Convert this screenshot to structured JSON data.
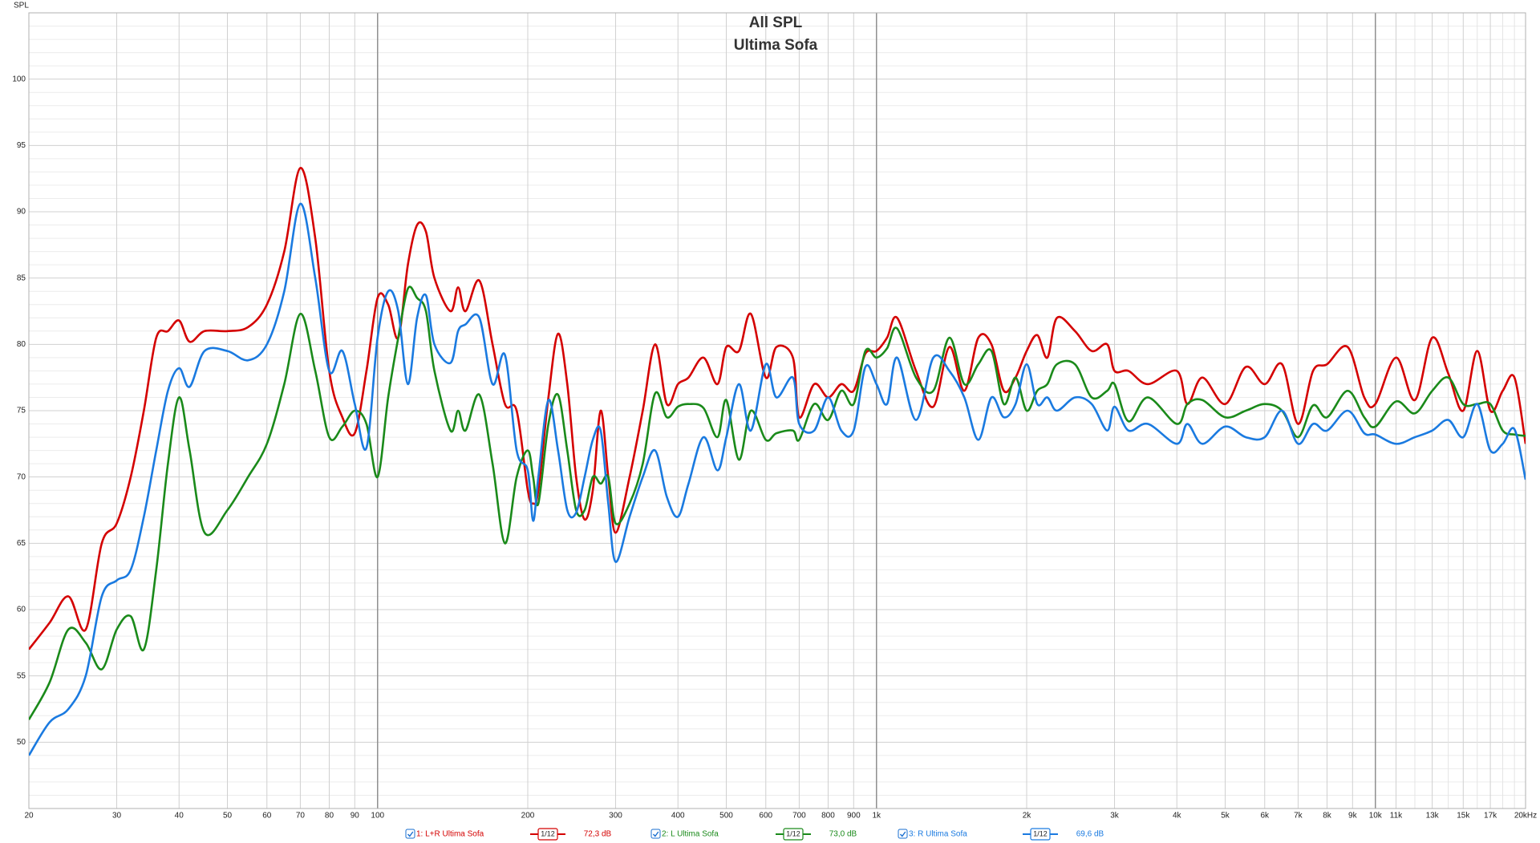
{
  "chart_data": {
    "type": "line",
    "title": "All SPL",
    "subtitle": "Ultima Sofa",
    "y_label": "SPL",
    "log_x": true,
    "grid": true,
    "xlim": [
      20,
      20000
    ],
    "ylim": [
      45,
      105
    ],
    "yticks": [
      50,
      55,
      60,
      65,
      70,
      75,
      80,
      85,
      90,
      95,
      100
    ],
    "yminorticks": [
      46,
      47,
      48,
      49,
      51,
      52,
      53,
      54,
      56,
      57,
      58,
      59,
      61,
      62,
      63,
      64,
      66,
      67,
      68,
      69,
      71,
      72,
      73,
      74,
      76,
      77,
      78,
      79,
      81,
      82,
      83,
      84,
      86,
      87,
      88,
      89,
      91,
      92,
      93,
      94,
      96,
      97,
      98,
      99,
      101,
      102,
      103,
      104
    ],
    "xticks": [
      20,
      30,
      40,
      50,
      60,
      70,
      80,
      90,
      100,
      200,
      300,
      400,
      500,
      600,
      700,
      800,
      900,
      {
        "value": 1000,
        "label": "1k"
      },
      {
        "value": 2000,
        "label": "2k"
      },
      {
        "value": 3000,
        "label": "3k"
      },
      {
        "value": 4000,
        "label": "4k"
      },
      {
        "value": 5000,
        "label": "5k"
      },
      {
        "value": 6000,
        "label": "6k"
      },
      {
        "value": 7000,
        "label": "7k"
      },
      {
        "value": 8000,
        "label": "8k"
      },
      {
        "value": 9000,
        "label": "9k"
      },
      {
        "value": 10000,
        "label": "10k"
      },
      {
        "value": 11000,
        "label": "11k"
      },
      {
        "value": 13000,
        "label": "13k"
      },
      {
        "value": 15000,
        "label": "15k"
      },
      {
        "value": 17000,
        "label": "17k"
      },
      {
        "value": 20000,
        "label": "20kHz"
      }
    ],
    "xminorticks": [
      12000,
      14000,
      16000,
      18000,
      19000
    ],
    "x": [
      20,
      22,
      24,
      26,
      28,
      30,
      32,
      34,
      36,
      38,
      40,
      42,
      45,
      50,
      55,
      60,
      65,
      70,
      75,
      80,
      85,
      90,
      95,
      100,
      105,
      110,
      115,
      120,
      125,
      130,
      140,
      145,
      150,
      160,
      170,
      180,
      190,
      200,
      205,
      210,
      220,
      230,
      240,
      250,
      260,
      270,
      280,
      290,
      300,
      320,
      340,
      360,
      380,
      400,
      420,
      450,
      480,
      500,
      530,
      560,
      600,
      630,
      680,
      700,
      750,
      800,
      850,
      900,
      950,
      1000,
      1050,
      1100,
      1200,
      1300,
      1400,
      1500,
      1600,
      1700,
      1800,
      1900,
      2000,
      2100,
      2200,
      2300,
      2500,
      2700,
      2900,
      3000,
      3200,
      3500,
      4000,
      4200,
      4500,
      5000,
      5500,
      6000,
      6500,
      7000,
      7500,
      8000,
      8800,
      9500,
      10000,
      11000,
      12000,
      13000,
      14000,
      15000,
      16000,
      17000,
      18000,
      19000,
      20000
    ],
    "series": [
      {
        "name": "1: L+R Ultima Sofa",
        "color": "#d40000",
        "smoothing": "1/12",
        "level": "72,3 dB",
        "values": [
          57,
          59,
          61,
          58.5,
          65,
          66.5,
          70,
          75,
          80.5,
          81,
          81.8,
          80.2,
          81,
          81,
          81.3,
          83,
          87,
          93.3,
          88,
          78,
          74.5,
          73.3,
          78,
          83.5,
          83,
          80.5,
          86,
          89,
          88.5,
          85,
          82.5,
          84.3,
          82.5,
          84.8,
          80,
          75.5,
          75,
          69,
          68,
          69,
          76,
          80.8,
          77,
          70,
          66.8,
          69,
          75,
          70,
          65.8,
          70,
          75,
          80,
          75.5,
          77,
          77.5,
          79,
          77,
          79.8,
          79.5,
          82.3,
          77.5,
          79.8,
          79,
          74.5,
          77,
          76,
          77,
          76.5,
          79.3,
          79.5,
          80.5,
          82,
          78,
          75.3,
          79.8,
          76.5,
          80.5,
          80,
          76.5,
          77.5,
          79.5,
          80.7,
          79,
          82,
          81,
          79.5,
          80,
          78,
          78,
          77,
          78,
          75.5,
          77.5,
          75.5,
          78.3,
          77,
          78.5,
          74,
          78,
          78.5,
          79.8,
          76,
          75.5,
          79,
          75.8,
          80.5,
          77.8,
          75,
          79.5,
          75,
          76.5,
          77.5,
          72.5
        ]
      },
      {
        "name": "2: L Ultima Sofa",
        "color": "#1a8a1a",
        "smoothing": "1/12",
        "level": "73,0 dB",
        "values": [
          51.7,
          54.5,
          58.5,
          57.5,
          55.5,
          58.5,
          59.5,
          57,
          63,
          71,
          76,
          72,
          65.8,
          67.5,
          70,
          72.5,
          77,
          82.3,
          78,
          73,
          73.8,
          75,
          74,
          70,
          76,
          80.5,
          84.2,
          83.5,
          82.5,
          78,
          73.5,
          75,
          73.5,
          76.2,
          71,
          65,
          70,
          72,
          70,
          68,
          74,
          76.2,
          72,
          67.5,
          67.5,
          70,
          69.5,
          70,
          66.5,
          68,
          71,
          76.3,
          74.5,
          75.3,
          75.5,
          75.2,
          73,
          75.8,
          71.3,
          75,
          72.8,
          73.3,
          73.5,
          72.8,
          75.5,
          74.3,
          76.5,
          75.5,
          79.5,
          79,
          79.7,
          81.2,
          77.5,
          76.5,
          80.5,
          77,
          78.5,
          79.5,
          75.5,
          77.5,
          75,
          76.5,
          77,
          78.5,
          78.5,
          76,
          76.5,
          77,
          74.2,
          76,
          74,
          75.5,
          75.8,
          74.5,
          75,
          75.5,
          75,
          73,
          75.4,
          74.5,
          76.5,
          74.5,
          73.8,
          75.7,
          74.8,
          76.5,
          77.5,
          75.5,
          75.5,
          75.5,
          73.5,
          73.2,
          73.1
        ]
      },
      {
        "name": "3: R Ultima Sofa",
        "color": "#1a7ae0",
        "smoothing": "1/12",
        "level": "69,6 dB",
        "values": [
          49,
          51.5,
          52.5,
          55,
          61,
          62.2,
          63,
          67,
          72,
          76.5,
          78.2,
          76.8,
          79.5,
          79.5,
          78.8,
          80,
          84,
          90.6,
          85,
          78,
          79.5,
          75.5,
          72.2,
          80.5,
          84,
          82.5,
          77,
          82,
          83.7,
          80,
          78.6,
          81,
          81.5,
          82,
          77,
          79.2,
          72,
          70.5,
          66.7,
          70,
          75.8,
          72,
          67.5,
          67.3,
          70,
          72.8,
          73.5,
          68,
          63.6,
          67,
          70,
          72,
          68.5,
          67,
          69.5,
          73,
          70.5,
          73,
          77,
          73.5,
          78.5,
          76,
          77.5,
          74,
          73.5,
          76,
          73.5,
          73.5,
          78.3,
          77,
          75.5,
          79,
          74.3,
          79,
          78,
          76,
          72.8,
          76,
          74.5,
          75.5,
          78.5,
          75.5,
          76,
          75,
          76,
          75.5,
          73.5,
          75.3,
          73.5,
          74,
          72.5,
          74,
          72.5,
          73.8,
          73,
          73,
          75,
          72.5,
          74,
          73.5,
          75,
          73.3,
          73.2,
          72.5,
          73,
          73.5,
          74.3,
          73,
          75.5,
          72,
          72.5,
          73.6,
          69.8
        ]
      }
    ]
  }
}
